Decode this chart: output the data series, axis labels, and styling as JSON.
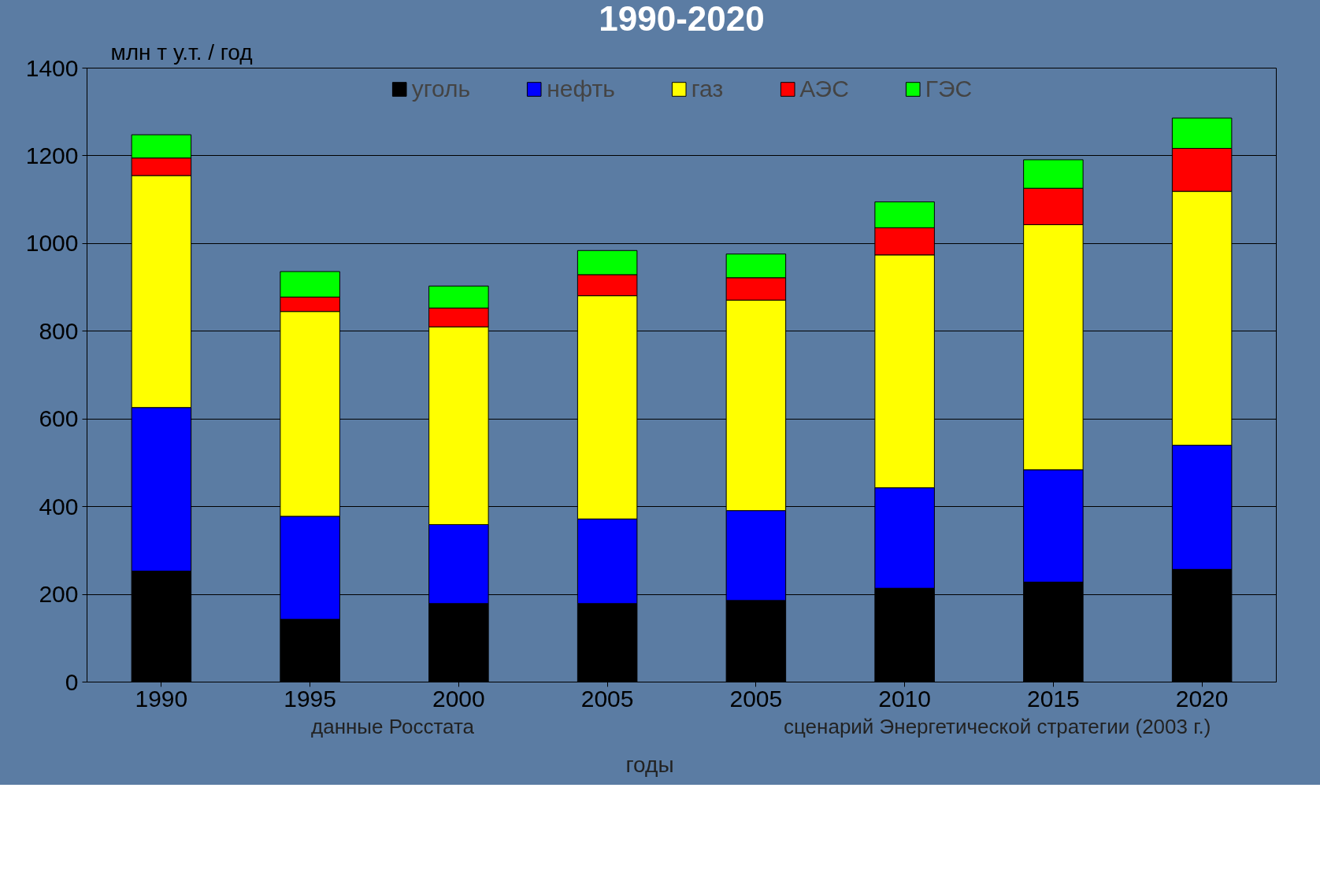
{
  "chart_data": {
    "type": "bar",
    "title": "1990-2020",
    "ylabel": "млн т у.т. / год",
    "xlabel": "годы",
    "categories": [
      "1990",
      "1995",
      "2000",
      "2005",
      "2005",
      "2010",
      "2015",
      "2020"
    ],
    "stacked": true,
    "series": [
      {
        "name": "уголь",
        "color": "#000000",
        "values": [
          253,
          143,
          179,
          179,
          186,
          214,
          228,
          257
        ]
      },
      {
        "name": "нефть",
        "color": "#0000ff",
        "values": [
          373,
          235,
          180,
          193,
          205,
          229,
          256,
          283
        ]
      },
      {
        "name": "газ",
        "color": "#ffff00",
        "values": [
          529,
          467,
          451,
          509,
          480,
          531,
          559,
          579
        ]
      },
      {
        "name": "АЭС",
        "color": "#ff0000",
        "values": [
          40,
          33,
          43,
          48,
          51,
          62,
          83,
          98
        ]
      },
      {
        "name": "ГЭС",
        "color": "#00ff00",
        "values": [
          53,
          58,
          50,
          55,
          54,
          59,
          65,
          69
        ]
      }
    ],
    "ylim": [
      0,
      1400
    ],
    "yticks": [
      0,
      200,
      400,
      600,
      800,
      1000,
      1200,
      1400
    ],
    "grid": "y",
    "legend": "top",
    "annotations": [
      "данные Росстата",
      "сценарий Энергетической стратегии (2003 г.)"
    ]
  }
}
